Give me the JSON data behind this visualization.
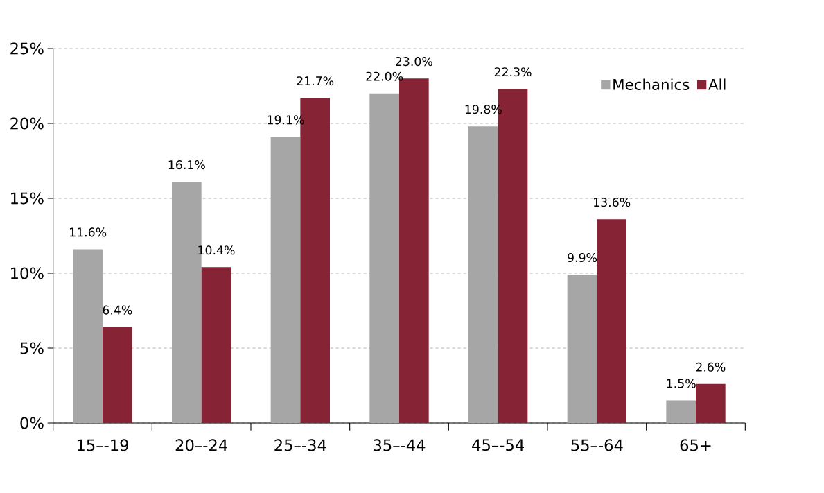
{
  "chart_data": {
    "type": "bar",
    "categories": [
      "15–-19",
      "20–-24",
      "25–-34",
      "35–-44",
      "45–-54",
      "55–-64",
      "65+"
    ],
    "series": [
      {
        "name": "Mechanics",
        "color": "#a6a6a6",
        "values": [
          11.6,
          16.1,
          19.1,
          22.0,
          19.8,
          9.9,
          1.5
        ],
        "value_labels": [
          "11.6%",
          "16.1%",
          "19.1%",
          "22.0%",
          "19.8%",
          "9.9%",
          "1.5%"
        ]
      },
      {
        "name": "All",
        "color": "#862334",
        "values": [
          6.4,
          10.4,
          21.7,
          23.0,
          22.3,
          13.6,
          2.6
        ],
        "value_labels": [
          "6.4%",
          "10.4%",
          "21.7%",
          "23.0%",
          "22.3%",
          "13.6%",
          "2.6%"
        ]
      }
    ],
    "ylim": [
      0,
      25
    ],
    "yticks": [
      {
        "value": 0,
        "label": "0%"
      },
      {
        "value": 5,
        "label": "5%"
      },
      {
        "value": 10,
        "label": "10%"
      },
      {
        "value": 15,
        "label": "15%"
      },
      {
        "value": 20,
        "label": "20%"
      },
      {
        "value": 25,
        "label": "25%"
      }
    ],
    "grid": "y",
    "legend": "top right"
  }
}
